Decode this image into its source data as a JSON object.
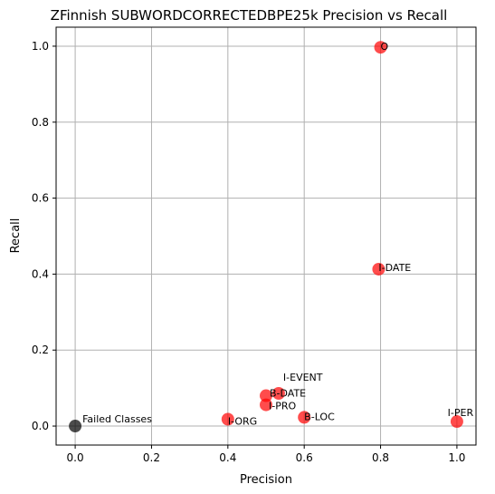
{
  "chart_data": {
    "type": "scatter",
    "title": "ZFinnish SUBWORDCORRECTEDBPE25k Precision vs Recall",
    "xlabel": "Precision",
    "ylabel": "Recall",
    "xlim": [
      -0.05,
      1.05
    ],
    "ylim": [
      -0.05,
      1.05
    ],
    "xticks": [
      0.0,
      0.2,
      0.4,
      0.6,
      0.8,
      1.0
    ],
    "yticks": [
      0.0,
      0.2,
      0.4,
      0.6,
      0.8,
      1.0
    ],
    "xtick_labels": [
      "0.0",
      "0.2",
      "0.4",
      "0.6",
      "0.8",
      "1.0"
    ],
    "ytick_labels": [
      "0.0",
      "0.2",
      "0.4",
      "0.6",
      "0.8",
      "1.0"
    ],
    "grid": true,
    "legend": "none",
    "colors": {
      "class_point": "#ff0000",
      "failed_point": "#000000",
      "grid": "#b0b0b0"
    },
    "points": [
      {
        "label": "O",
        "x": 0.8,
        "y": 0.997,
        "color": "red"
      },
      {
        "label": "I-DATE",
        "x": 0.795,
        "y": 0.413,
        "color": "red"
      },
      {
        "label": "I-EVENT",
        "x": 0.533,
        "y": 0.086,
        "color": "red"
      },
      {
        "label": "B-DATE",
        "x": 0.5,
        "y": 0.08,
        "color": "red"
      },
      {
        "label": "I-PRO",
        "x": 0.5,
        "y": 0.056,
        "color": "red"
      },
      {
        "label": "B-LOC",
        "x": 0.6,
        "y": 0.023,
        "color": "red"
      },
      {
        "label": "I-ORG",
        "x": 0.4,
        "y": 0.018,
        "color": "red"
      },
      {
        "label": "I-PER",
        "x": 1.0,
        "y": 0.012,
        "color": "red"
      },
      {
        "label": "Failed Classes",
        "x": 0.0,
        "y": 0.0,
        "color": "black"
      }
    ]
  }
}
